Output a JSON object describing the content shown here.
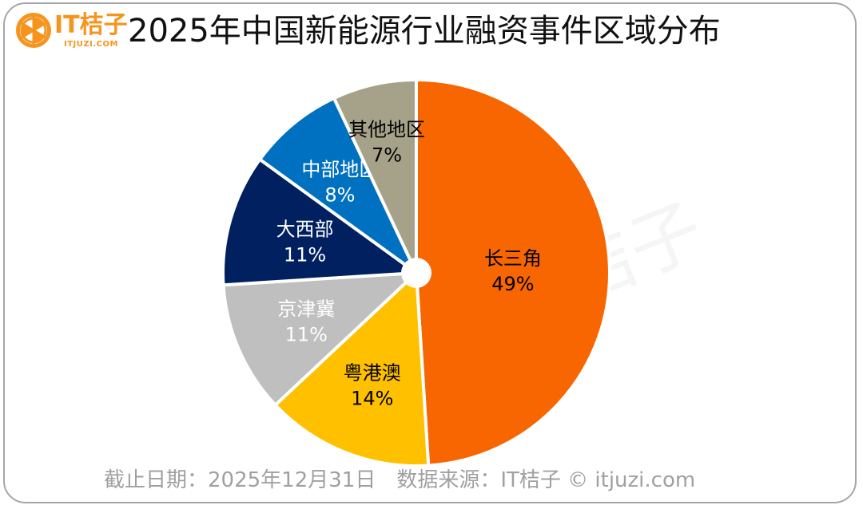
{
  "header": {
    "logo_text": "IT桔子",
    "logo_sub": "ITJUZI.COM",
    "title": "2025年中国新能源行业融资事件区域分布"
  },
  "footer": {
    "text": "截止日期：2025年12月31日　数据来源：IT桔子 © itjuzi.com"
  },
  "watermark": {
    "text": "IT桔子",
    "sub": "ITJUZI.COM"
  },
  "colors": {
    "brand": "#f7941d",
    "changsanjiao": "#f76600",
    "yuegangao": "#ffc000",
    "jingjinji": "#bfbfbf",
    "daxibu": "#002060",
    "zhongbu": "#0070c0",
    "qita": "#a6a28a"
  },
  "chart_data": {
    "type": "pie",
    "title": "2025年中国新能源行业融资事件区域分布",
    "categories": [
      "长三角",
      "粤港澳",
      "京津冀",
      "大西部",
      "中部地区",
      "其他地区"
    ],
    "values": [
      49,
      14,
      11,
      11,
      8,
      7
    ],
    "unit": "%",
    "start_angle": "12 o'clock, clockwise",
    "labels": [
      {
        "name": "长三角",
        "pct": "49%"
      },
      {
        "name": "粤港澳",
        "pct": "14%"
      },
      {
        "name": "京津冀",
        "pct": "11%"
      },
      {
        "name": "大西部",
        "pct": "11%"
      },
      {
        "name": "中部地区",
        "pct": "8%"
      },
      {
        "name": "其他地区",
        "pct": "7%"
      }
    ],
    "legend": "none (inline labels)"
  }
}
